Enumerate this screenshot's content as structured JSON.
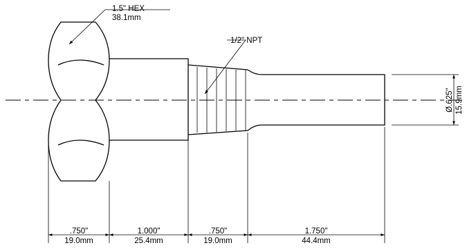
{
  "callouts": {
    "hex": {
      "line1": "1.5\" HEX",
      "line2": "38.1mm"
    },
    "thread": {
      "label": "1/2\" NPT"
    }
  },
  "dimensions": {
    "hex_length": {
      "inch": ".750\"",
      "mm": "19.0mm"
    },
    "body_length": {
      "inch": "1.000\"",
      "mm": "25.4mm"
    },
    "thread_length": {
      "inch": ".750\"",
      "mm": "19.0mm"
    },
    "stem_length": {
      "inch": "1.750\"",
      "mm": "44.4mm"
    },
    "stem_diameter": {
      "inch": "Ø.625\"",
      "mm": "15.9mm"
    }
  }
}
